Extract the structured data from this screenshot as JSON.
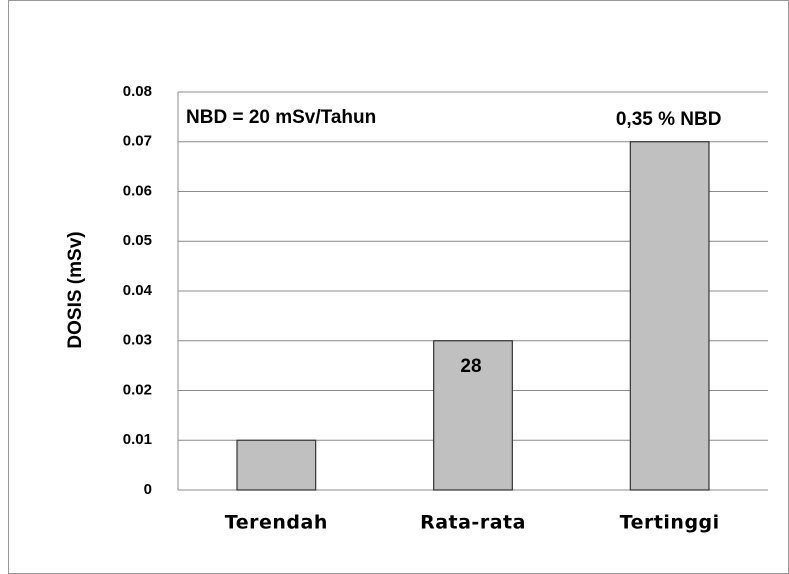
{
  "chart_data": {
    "type": "bar",
    "y_label": "DOSIS (mSv)",
    "categories": [
      "Terendah",
      "Rata-rata",
      "Tertinggi"
    ],
    "values": [
      0.01,
      0.03,
      0.07
    ],
    "color": "#c0c0c0",
    "ylim": [
      0,
      0.08
    ],
    "yticks": [
      0,
      0.01,
      0.02,
      0.03,
      0.04,
      0.05,
      0.06,
      0.07,
      0.08
    ],
    "grid": true,
    "annotations": [
      "NBD = 20 mSv/Tahun",
      "28",
      "0,35 % NBD"
    ]
  }
}
